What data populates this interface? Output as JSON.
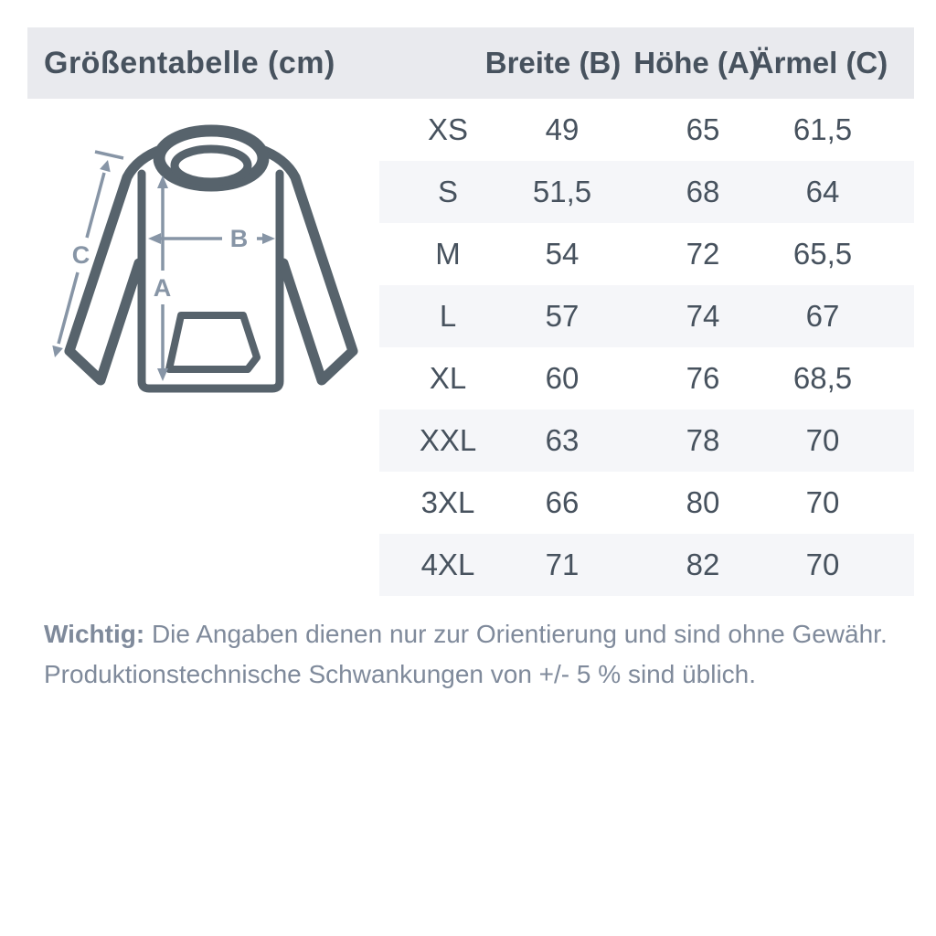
{
  "chart_data": {
    "type": "table",
    "title": "Größentabelle (cm)",
    "unit": "cm",
    "columns": [
      "Breite (B)",
      "Höhe (A)",
      "Ärmel (C)"
    ],
    "rows": [
      [
        "XS",
        "49",
        "65",
        "61,5"
      ],
      [
        "S",
        "51,5",
        "68",
        "64"
      ],
      [
        "M",
        "54",
        "72",
        "65,5"
      ],
      [
        "L",
        "57",
        "74",
        "67"
      ],
      [
        "XL",
        "60",
        "76",
        "68,5"
      ],
      [
        "XXL",
        "63",
        "78",
        "70"
      ],
      [
        "3XL",
        "66",
        "80",
        "70"
      ],
      [
        "4XL",
        "71",
        "82",
        "70"
      ]
    ]
  },
  "diagram": {
    "label_a": "A",
    "label_b": "B",
    "label_c": "C"
  },
  "note": {
    "lead": "Wichtig:",
    "line1": "Die Angaben dienen nur zur Orientierung und sind ohne Gewähr.",
    "line2": "Produktionstechnische Schwankungen von +/- 5 % sind üblich."
  },
  "colors": {
    "header_band": "#e9eaee",
    "row_alt": "#f5f6f9",
    "text_dark": "#47525e",
    "hoodie_outline": "#57636c",
    "measure_arrows": "#8795a6",
    "note_text": "#7f8a9b"
  }
}
